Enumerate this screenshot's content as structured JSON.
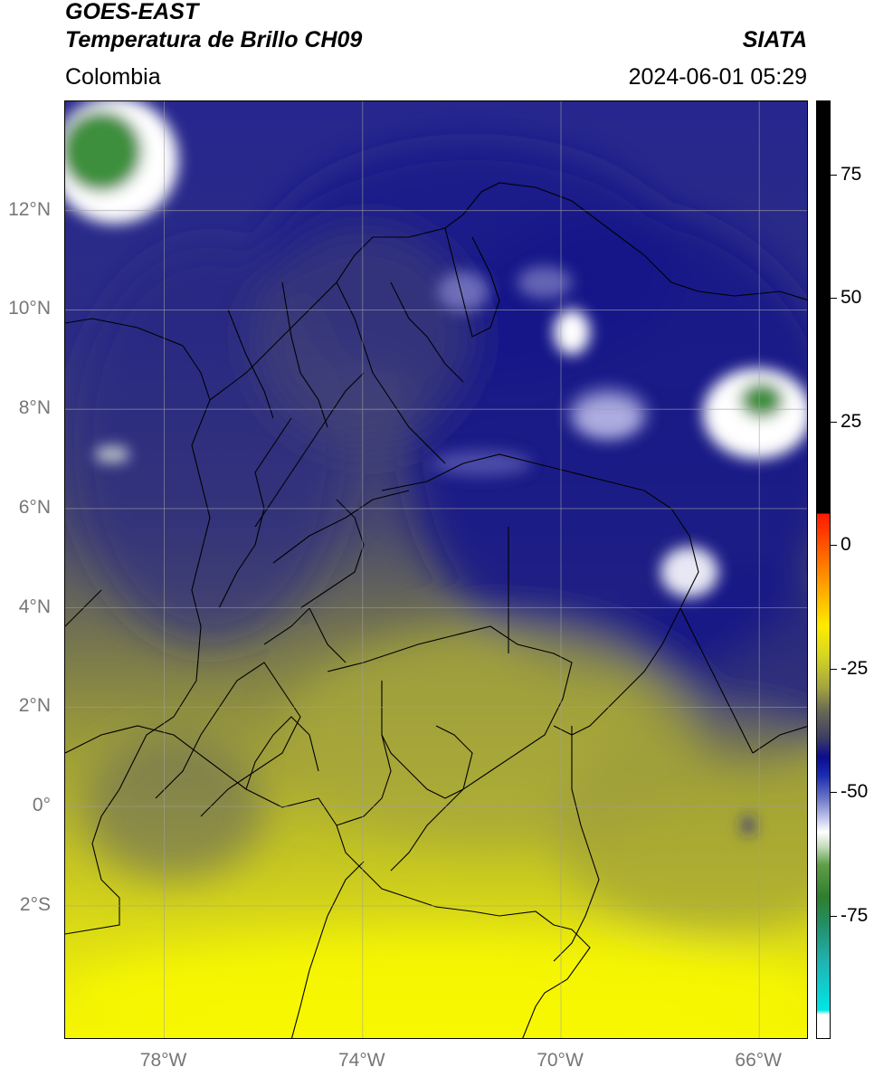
{
  "header": {
    "satellite": "GOES-EAST",
    "product": "Temperatura de Brillo CH09",
    "region": "Colombia",
    "organization": "SIATA",
    "datetime": "2024-06-01 05:29"
  },
  "map": {
    "lon_range": [
      -80,
      -65
    ],
    "lat_range": [
      -4.7,
      14.2
    ],
    "lat_ticks": [
      "12°N",
      "10°N",
      "8°N",
      "6°N",
      "4°N",
      "2°N",
      "0°",
      "2°S"
    ],
    "lat_values": [
      12,
      10,
      8,
      6,
      4,
      2,
      0,
      -2
    ],
    "lon_ticks": [
      "78°W",
      "74°W",
      "70°W",
      "66°W"
    ],
    "lon_values": [
      -78,
      -74,
      -70,
      -66
    ],
    "gridlines": true,
    "colors": {
      "warm_yellow": "#f2f200",
      "olive": "#9c9c38",
      "gray_blue": "#4a4a6c",
      "deep_blue": "#131383",
      "cold_white": "#ffffff",
      "green": "#3c8c3c"
    }
  },
  "colorbar": {
    "ticks": [
      "75",
      "50",
      "25",
      "0",
      "-25",
      "-50",
      "-75"
    ],
    "values": [
      75,
      50,
      25,
      0,
      -25,
      -50,
      -75
    ],
    "range": [
      -100,
      90
    ]
  }
}
